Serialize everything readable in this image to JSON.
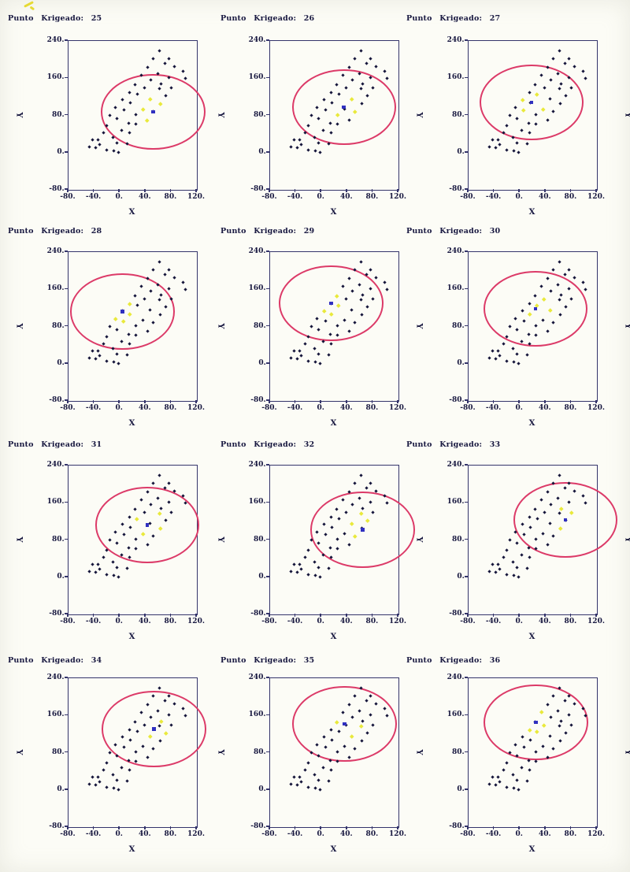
{
  "page": {
    "background": "#fcfcf6",
    "scan_mark_color": "#e6da34"
  },
  "colors": {
    "sample_point": "#15153a",
    "highlighted_point": "#e9e93c",
    "krige_point": "#3030c0",
    "ellipse": "#dc3a68",
    "box_border": "#34346b",
    "text": "#181840"
  },
  "chart_data": {
    "type": "scatter",
    "layout_hint": "grid of 12 subplots (4 rows x 3 cols), shared sample data, no grid lines, search ellipse of radius 80 centered on kriged point",
    "axes": {
      "x_label": "X",
      "y_label": "Y",
      "x_ticks": [
        "-80.",
        "-40.",
        "0.",
        "40.",
        "80.",
        "120."
      ],
      "y_ticks": [
        "240.",
        "160.",
        "80.",
        "0.",
        "-80."
      ],
      "x_range": [
        -80,
        120
      ],
      "y_range": [
        -80,
        240
      ],
      "grid": false
    },
    "search_radius": 80,
    "samples": [
      [
        62,
        218
      ],
      [
        52,
        202
      ],
      [
        76,
        202
      ],
      [
        70,
        191
      ],
      [
        43,
        184
      ],
      [
        85,
        185
      ],
      [
        99,
        175
      ],
      [
        34,
        167
      ],
      [
        59,
        169
      ],
      [
        77,
        161
      ],
      [
        102,
        160
      ],
      [
        48,
        156
      ],
      [
        24,
        146
      ],
      [
        64,
        147
      ],
      [
        38,
        139
      ],
      [
        80,
        139
      ],
      [
        62,
        137
      ],
      [
        15,
        129
      ],
      [
        27,
        125
      ],
      [
        72,
        122
      ],
      [
        4,
        114
      ],
      [
        16,
        107
      ],
      [
        47,
        115
      ],
      [
        63,
        105
      ],
      [
        36,
        93
      ],
      [
        52,
        88
      ],
      [
        43,
        70
      ],
      [
        -7,
        97
      ],
      [
        6,
        92
      ],
      [
        25,
        82
      ],
      [
        -15,
        80
      ],
      [
        -4,
        73
      ],
      [
        14,
        63
      ],
      [
        25,
        61
      ],
      [
        -20,
        58
      ],
      [
        3,
        47
      ],
      [
        15,
        42
      ],
      [
        -26,
        42
      ],
      [
        -11,
        33
      ],
      [
        -34,
        28
      ],
      [
        -4,
        21
      ],
      [
        11,
        19
      ],
      [
        -43,
        27
      ],
      [
        -32,
        18
      ],
      [
        -47,
        12
      ],
      [
        -38,
        10
      ],
      [
        -20,
        5
      ],
      [
        -10,
        4
      ],
      [
        -2,
        0
      ]
    ],
    "subplots": [
      {
        "number": 25,
        "title": "Punto Krigeado: 25",
        "krige_point": [
          52,
          88
        ],
        "highlighted": [
          22,
          23,
          24,
          26
        ]
      },
      {
        "number": 26,
        "title": "Punto Krigeado: 26",
        "krige_point": [
          35,
          98
        ],
        "highlighted": [
          22,
          25,
          29
        ]
      },
      {
        "number": 27,
        "title": "Punto Krigeado: 27",
        "krige_point": [
          18,
          108
        ],
        "highlighted": [
          18,
          20,
          24,
          28
        ]
      },
      {
        "number": 28,
        "title": "Punto Krigeado: 28",
        "krige_point": [
          4,
          112
        ],
        "highlighted": [
          17,
          21,
          27,
          28
        ]
      },
      {
        "number": 29,
        "title": "Punto Krigeado: 29",
        "krige_point": [
          15,
          130
        ],
        "highlighted": [
          12,
          18,
          20,
          21
        ]
      },
      {
        "number": 30,
        "title": "Punto Krigeado: 30",
        "krige_point": [
          24,
          118
        ],
        "highlighted": [
          14,
          18,
          21,
          22
        ]
      },
      {
        "number": 31,
        "title": "Punto Krigeado: 31",
        "krige_point": [
          43,
          112
        ],
        "highlighted": [
          16,
          18,
          23,
          24
        ]
      },
      {
        "number": 32,
        "title": "Punto Krigeado: 32",
        "krige_point": [
          64,
          102
        ],
        "highlighted": [
          16,
          19,
          22,
          25
        ]
      },
      {
        "number": 33,
        "title": "Punto Krigeado: 33",
        "krige_point": [
          71,
          123
        ],
        "highlighted": [
          13,
          15,
          23
        ]
      },
      {
        "number": 34,
        "title": "Punto Krigeado: 34",
        "krige_point": [
          53,
          131
        ],
        "highlighted": [
          13,
          19,
          22
        ]
      },
      {
        "number": 35,
        "title": "Punto Krigeado: 35",
        "krige_point": [
          36,
          142
        ],
        "highlighted": [
          12,
          16,
          22
        ]
      },
      {
        "number": 36,
        "title": "Punto Krigeado: 36",
        "krige_point": [
          25,
          145
        ],
        "highlighted": [
          7,
          14,
          17,
          18
        ]
      }
    ]
  }
}
